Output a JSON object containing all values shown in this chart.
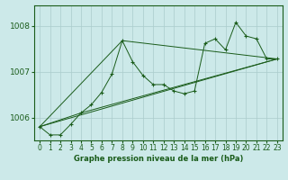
{
  "title": "Graphe pression niveau de la mer (hPa)",
  "bg_color": "#cce9e9",
  "grid_color": "#aacccc",
  "line_color": "#1a5c1a",
  "marker_color": "#1a5c1a",
  "xlim": [
    -0.5,
    23.5
  ],
  "ylim": [
    1005.5,
    1008.45
  ],
  "yticks": [
    1006,
    1007,
    1008
  ],
  "xticks": [
    0,
    1,
    2,
    3,
    4,
    5,
    6,
    7,
    8,
    9,
    10,
    11,
    12,
    13,
    14,
    15,
    16,
    17,
    18,
    19,
    20,
    21,
    22,
    23
  ],
  "series_main": {
    "x": [
      0,
      1,
      2,
      3,
      4,
      5,
      6,
      7,
      8,
      9,
      10,
      11,
      12,
      13,
      14,
      15,
      16,
      17,
      18,
      19,
      20,
      21,
      22,
      23
    ],
    "y": [
      1005.8,
      1005.62,
      1005.62,
      1005.85,
      1006.1,
      1006.28,
      1006.55,
      1006.95,
      1007.68,
      1007.22,
      1006.92,
      1006.72,
      1006.72,
      1006.58,
      1006.52,
      1006.58,
      1007.62,
      1007.72,
      1007.48,
      1008.08,
      1007.78,
      1007.72,
      1007.28,
      1007.28
    ]
  },
  "series_lines": [
    {
      "x": [
        0,
        23
      ],
      "y": [
        1005.8,
        1007.28
      ]
    },
    {
      "x": [
        0,
        4,
        23
      ],
      "y": [
        1005.8,
        1006.1,
        1007.28
      ]
    },
    {
      "x": [
        0,
        8,
        23
      ],
      "y": [
        1005.8,
        1007.68,
        1007.28
      ]
    }
  ]
}
